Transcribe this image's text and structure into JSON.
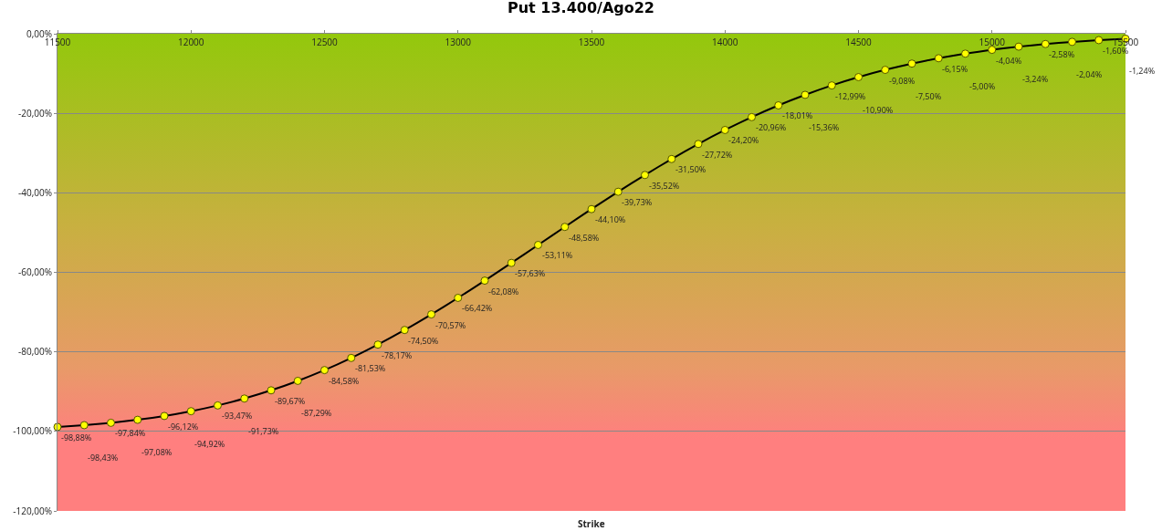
{
  "chart_data": {
    "type": "line",
    "title": "Put 13.400/Ago22",
    "xlabel": "Strike",
    "x": [
      11500,
      11600,
      11700,
      11800,
      11900,
      12000,
      12100,
      12200,
      12300,
      12400,
      12500,
      12600,
      12700,
      12800,
      12900,
      13000,
      13100,
      13200,
      13300,
      13400,
      13500,
      13600,
      13700,
      13800,
      13900,
      14000,
      14100,
      14200,
      14300,
      14400,
      14500,
      14600,
      14700,
      14800,
      14900,
      15000,
      15100,
      15200,
      15300,
      15400,
      15500
    ],
    "series": [
      {
        "color": "#000000",
        "values": [
          -98.88,
          -98.43,
          -97.84,
          -97.08,
          -96.12,
          -94.92,
          -93.47,
          -91.73,
          -89.67,
          -87.29,
          -84.58,
          -81.53,
          -78.17,
          -74.5,
          -70.57,
          -66.42,
          -62.08,
          -57.63,
          -53.11,
          -48.58,
          -44.1,
          -39.73,
          -35.52,
          -31.5,
          -27.72,
          -24.2,
          -20.96,
          -18.01,
          -15.36,
          -12.99,
          -10.9,
          -9.08,
          -7.5,
          -6.15,
          -5.0,
          -4.04,
          -3.24,
          -2.58,
          -2.04,
          -1.6,
          -1.24
        ],
        "value_labels": [
          "-98,88%",
          "-98,43%",
          "-97,84%",
          "-97,08%",
          "-96,12%",
          "-94,92%",
          "-93,47%",
          "-91,73%",
          "-89,67%",
          "-87,29%",
          "-84,58%",
          "-81,53%",
          "-78,17%",
          "-74,50%",
          "-70,57%",
          "-66,42%",
          "-62,08%",
          "-57,63%",
          "-53,11%",
          "-48,58%",
          "-44,10%",
          "-39,73%",
          "-35,52%",
          "-31,50%",
          "-27,72%",
          "-24,20%",
          "-20,96%",
          "-18,01%",
          "-15,36%",
          "-12,99%",
          "-10,90%",
          "-9,08%",
          "-7,50%",
          "-6,15%",
          "-5,00%",
          "-4,04%",
          "-3,24%",
          "-2,58%",
          "-2,04%",
          "-1,60%",
          "-1,24%"
        ]
      }
    ],
    "xlim": [
      11500,
      15500
    ],
    "xticks": [
      11500,
      12000,
      12500,
      13000,
      13500,
      14000,
      14500,
      15000,
      15500
    ],
    "ylim": [
      -120,
      0
    ],
    "yticks": [
      {
        "value": -120,
        "label": "-120,00%"
      },
      {
        "value": -100,
        "label": "-100,00%"
      },
      {
        "value": -80,
        "label": "-80,00%"
      },
      {
        "value": -60,
        "label": "-60,00%"
      },
      {
        "value": -40,
        "label": "-40,00%"
      },
      {
        "value": -20,
        "label": "-20,00%"
      },
      {
        "value": 0,
        "label": "0,00%"
      }
    ],
    "grid": "y",
    "marker": "circle",
    "line_style": "solid"
  }
}
